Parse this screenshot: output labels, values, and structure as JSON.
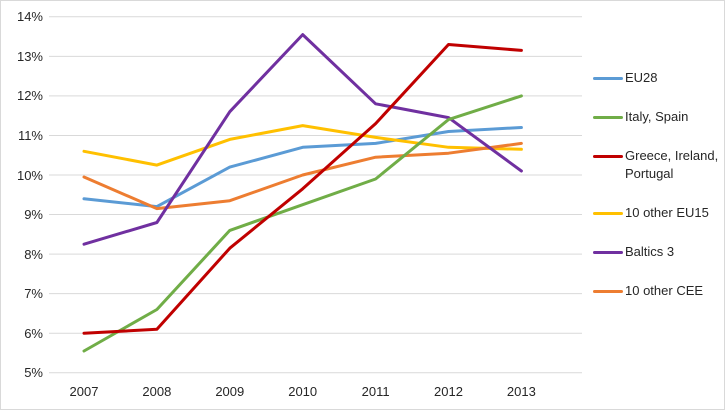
{
  "chart_data": {
    "type": "line",
    "title": "",
    "x_labels": [
      "2007",
      "2008",
      "2009",
      "2010",
      "2011",
      "2012",
      "2013"
    ],
    "y_axis": {
      "min": 5,
      "max": 14,
      "step": 1,
      "tick_labels": [
        "5%",
        "6%",
        "7%",
        "8%",
        "9%",
        "10%",
        "11%",
        "12%",
        "13%",
        "14%"
      ]
    },
    "grid": true,
    "legend_position": "right",
    "series": [
      {
        "name": "EU28",
        "color": "#5B9BD5",
        "values": [
          9.4,
          9.2,
          10.2,
          10.7,
          10.8,
          11.1,
          11.2
        ]
      },
      {
        "name": "Italy, Spain",
        "color": "#70AD47",
        "values": [
          5.55,
          6.6,
          8.6,
          9.25,
          9.9,
          11.4,
          12.0
        ]
      },
      {
        "name": "Greece, Ireland, Portugal",
        "color": "#C00000",
        "values": [
          6.0,
          6.1,
          8.15,
          9.65,
          11.3,
          13.3,
          13.15
        ]
      },
      {
        "name": "10 other EU15",
        "color": "#FFC000",
        "values": [
          10.6,
          10.25,
          10.9,
          11.25,
          10.95,
          10.7,
          10.65
        ]
      },
      {
        "name": "Baltics 3",
        "color": "#7030A0",
        "values": [
          8.25,
          8.8,
          11.6,
          13.55,
          11.8,
          11.45,
          10.1
        ]
      },
      {
        "name": "10 other CEE",
        "color": "#ED7D31",
        "values": [
          9.95,
          9.15,
          9.35,
          10.0,
          10.45,
          10.55,
          10.8
        ]
      }
    ],
    "draw_order": [
      0,
      3,
      5,
      4,
      1,
      2
    ]
  },
  "style_colors": {
    "gridline": "#D9D9D9",
    "axis_text": "#262626",
    "frame_border": "#D9D9D9",
    "background": "#FFFFFF"
  }
}
